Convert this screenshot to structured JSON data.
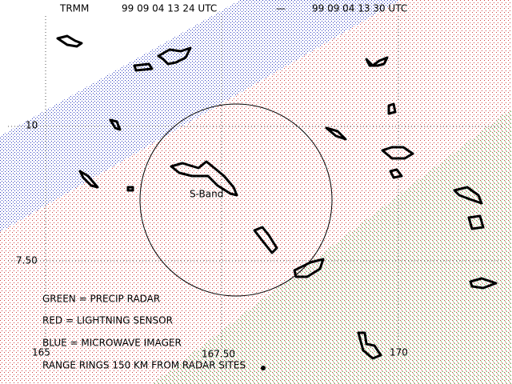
{
  "header": {
    "satellite": "TRMM",
    "start_time": "99 09 04 13 24 UTC",
    "separator": "—",
    "end_time": "99 09 04 13 30 UTC"
  },
  "grid_labels": {
    "latitudes": [
      "10",
      "7.50"
    ],
    "longitudes": [
      "165",
      "167.50",
      "170"
    ]
  },
  "site_label": "S-Band",
  "legend": [
    "GREEN = PRECIP RADAR",
    "RED = LIGHTNING SENSOR",
    "BLUE = MICROWAVE IMAGER",
    "RANGE RINGS 150 KM FROM RADAR SITES"
  ]
}
